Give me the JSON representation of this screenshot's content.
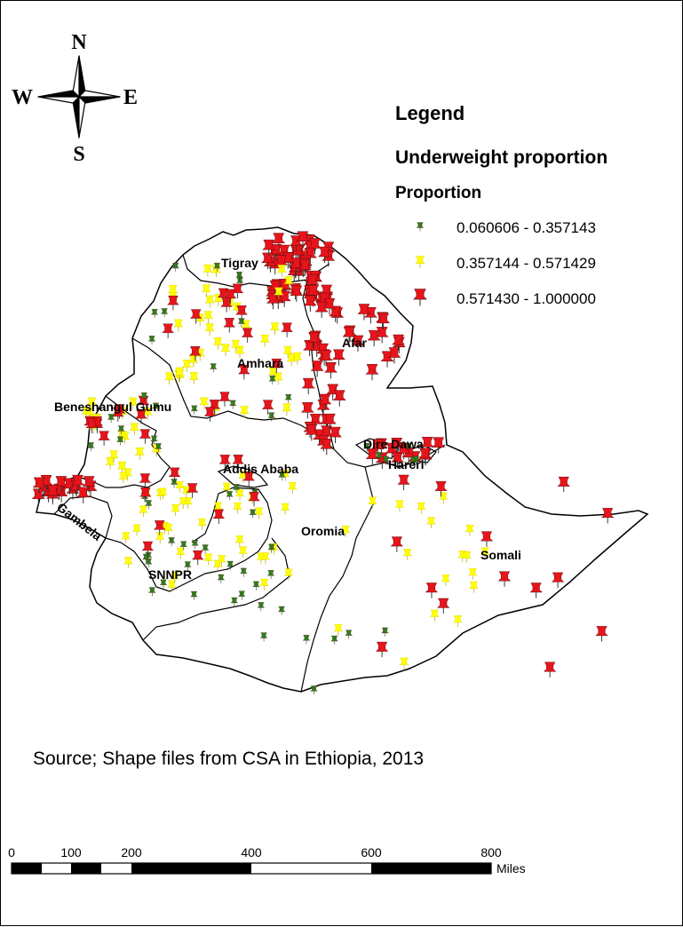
{
  "compass": {
    "north": "N",
    "south": "S",
    "east": "E",
    "west": "W"
  },
  "legend": {
    "title": "Legend",
    "subtitle": "Underweight proportion",
    "field": "Proportion",
    "classes": [
      {
        "label": "0.060606 - 0.357143",
        "color": "#2e7d1e"
      },
      {
        "label": "0.357144 - 0.571429",
        "color": "#ffff00"
      },
      {
        "label": "0.571430 - 1.000000",
        "color": "#e8141b"
      }
    ]
  },
  "regions": [
    "Tigray",
    "Afar",
    "Amhara",
    "Beneshangul Gumu",
    "Dire Dawa",
    "Hareri",
    "Addis Ababa",
    "Gambela",
    "Oromia",
    "Somali",
    "SNNPR"
  ],
  "source": "Source; Shape files from CSA in Ethiopia, 2013",
  "scale_bar": {
    "ticks": [
      "0",
      "100",
      "200",
      "400",
      "600",
      "800"
    ],
    "unit": "Miles"
  }
}
